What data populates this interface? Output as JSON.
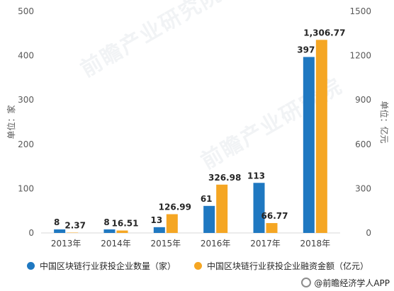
{
  "watermark_text": "前瞻产业研究院",
  "brand": {
    "icon": "camera-icon",
    "text": "@前瞻经济学人APP"
  },
  "chart_data": {
    "type": "bar",
    "categories": [
      "2013年",
      "2014年",
      "2015年",
      "2016年",
      "2017年",
      "2018年"
    ],
    "series": [
      {
        "name": "中国区块链行业获投企业数量（家）",
        "axis": "left",
        "color": "#1f78c1",
        "values": [
          8,
          8,
          13,
          61,
          113,
          397
        ],
        "labels": [
          "8",
          "8",
          "13",
          "61",
          "113",
          "397"
        ]
      },
      {
        "name": "中国区块链行业获投企业融资金额（亿元）",
        "axis": "right",
        "color": "#f5a623",
        "values": [
          2.37,
          16.51,
          126.99,
          326.98,
          66.77,
          1306.77
        ],
        "labels": [
          "2.37",
          "16.51",
          "126.99",
          "326.98",
          "66.77",
          "1,306.77"
        ]
      }
    ],
    "ylabel_left": "单位：家",
    "ylabel_right": "单位：亿元",
    "ylim_left": [
      0,
      500
    ],
    "ylim_right": [
      0,
      1500
    ],
    "yticks_left": [
      "0",
      "100",
      "200",
      "300",
      "400",
      "500"
    ],
    "yticks_right": [
      "0",
      "300",
      "600",
      "900",
      "1200",
      "1500"
    ],
    "grid": false,
    "legend_position": "bottom"
  }
}
